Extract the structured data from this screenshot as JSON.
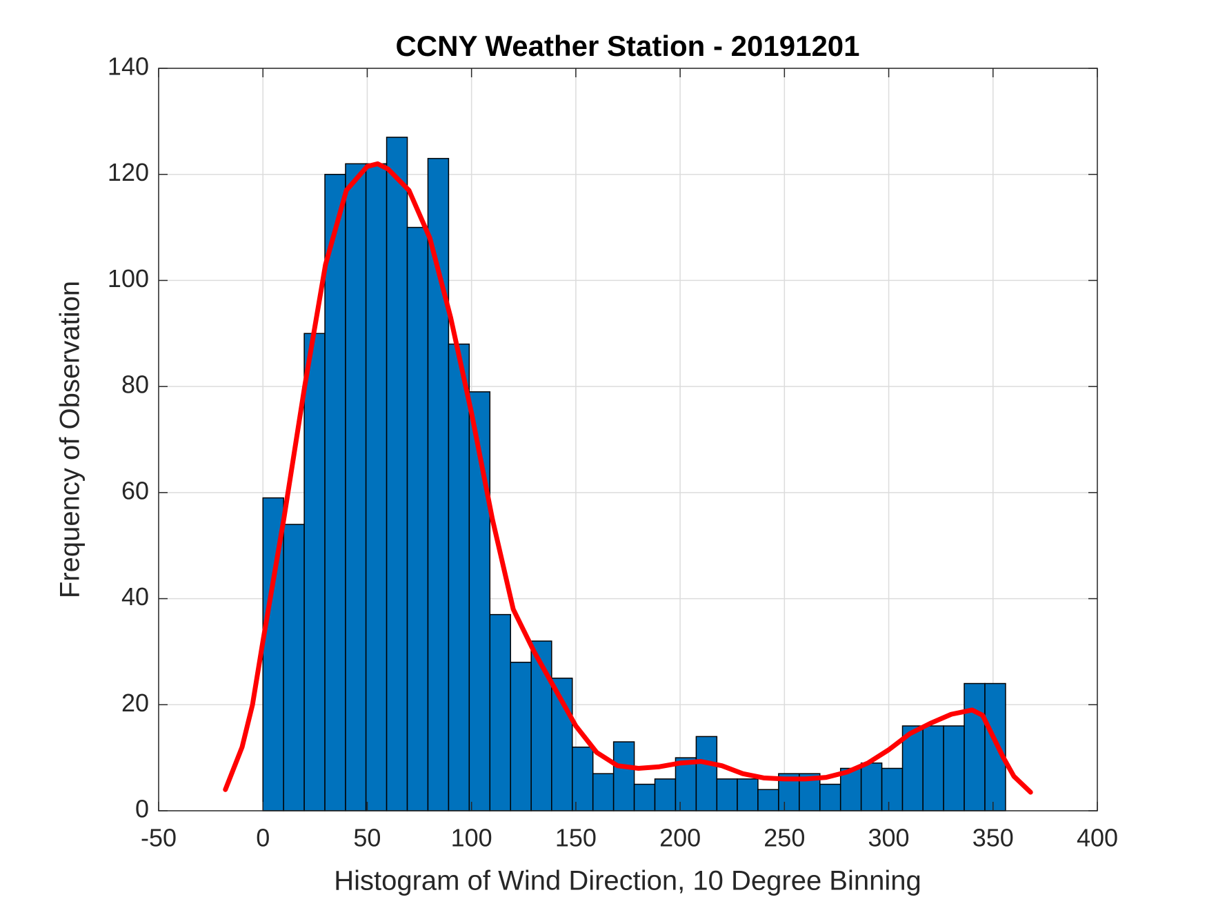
{
  "chart_data": {
    "type": "histogram",
    "title": "CCNY Weather Station - 20191201",
    "x_label": "Histogram of Wind Direction, 10 Degree Binning",
    "y_label": "Frequency of Observation",
    "bins": [
      0,
      9.9,
      19.8,
      29.7,
      39.6,
      49.4,
      59.3,
      69.2,
      79.1,
      89,
      98.9,
      108.8,
      118.7,
      128.6,
      138.4,
      148.3,
      158.2,
      168.1,
      178,
      187.9,
      197.8,
      207.7,
      217.6,
      227.4,
      237.3,
      247.2,
      257.1,
      267,
      276.9,
      286.8,
      296.7,
      306.6,
      316.4,
      326.3,
      336.2,
      346.1,
      356
    ],
    "counts": [
      59,
      54,
      90,
      120,
      122,
      122,
      127,
      110,
      123,
      88,
      79,
      37,
      28,
      32,
      25,
      12,
      7,
      13,
      5,
      6,
      10,
      14,
      6,
      6,
      4,
      7,
      7,
      5,
      8,
      9,
      8,
      16,
      16,
      16,
      24,
      24
    ],
    "color": "#0072bd",
    "edgecolor": "#000000",
    "line": {
      "color": "#ff0000",
      "x": [
        -18,
        -15,
        -10,
        -5,
        0,
        10,
        20,
        30,
        40,
        50,
        55,
        60,
        70,
        80,
        90,
        100,
        110,
        120,
        130,
        140,
        150,
        160,
        170,
        180,
        190,
        200,
        210,
        220,
        230,
        240,
        250,
        260,
        270,
        280,
        290,
        300,
        310,
        320,
        330,
        340,
        345,
        350,
        355,
        360,
        368
      ],
      "values": [
        4,
        7,
        12,
        20,
        32,
        55,
        80,
        103,
        117,
        121.5,
        122,
        121,
        117,
        108,
        93,
        75,
        55,
        38,
        30,
        23,
        16,
        11,
        8.5,
        8,
        8.3,
        9,
        9.3,
        8.5,
        7,
        6.2,
        6,
        6,
        6.3,
        7.3,
        9,
        11.5,
        14.5,
        16.5,
        18.2,
        19,
        18,
        14,
        10,
        6.5,
        3.5
      ]
    },
    "xlim": [
      -50,
      400
    ],
    "xticks": [
      -50,
      0,
      50,
      100,
      150,
      200,
      250,
      300,
      350,
      400
    ],
    "ylim": [
      0,
      140
    ],
    "yticks": [
      0,
      20,
      40,
      60,
      80,
      100,
      120,
      140
    ],
    "grid": true
  }
}
